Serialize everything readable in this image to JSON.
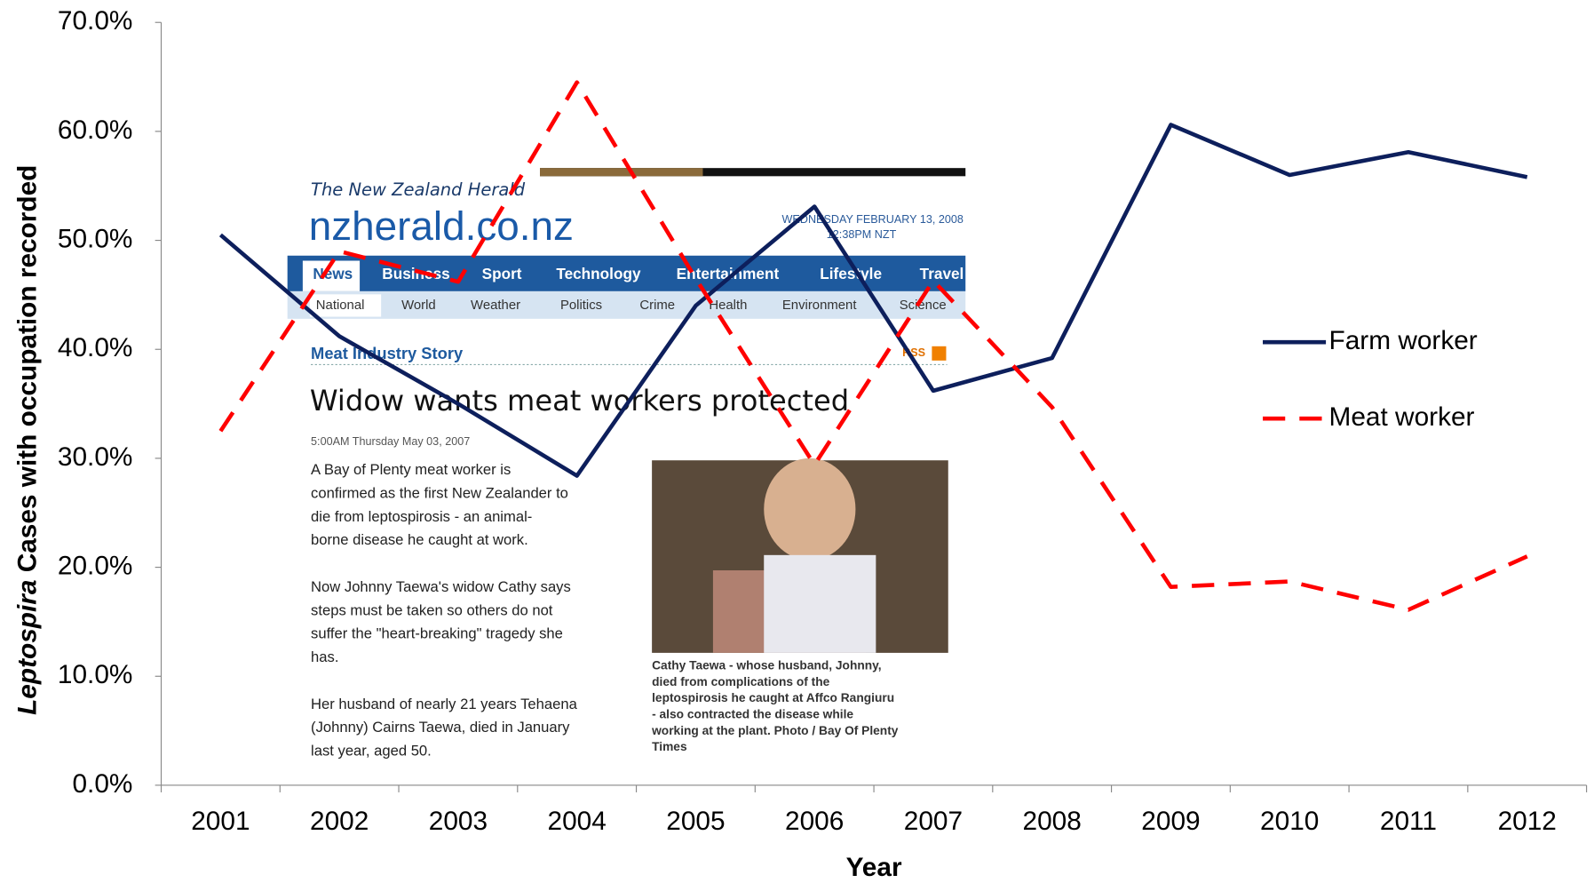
{
  "chart_data": {
    "type": "line",
    "xlabel": "Year",
    "ylabel_italic": "Leptospira",
    "ylabel": "Cases with occupation recorded",
    "categories": [
      "2001",
      "2002",
      "2003",
      "2004",
      "2005",
      "2006",
      "2007",
      "2008",
      "2009",
      "2010",
      "2011",
      "2012"
    ],
    "series": [
      {
        "name": "Farm worker",
        "color": "#0d1f5c",
        "dash": false,
        "values": [
          50.5,
          41.2,
          35.0,
          28.4,
          44.0,
          53.1,
          36.2,
          39.2,
          60.6,
          56.0,
          58.1,
          55.8
        ]
      },
      {
        "name": "Meat worker",
        "color": "#ff0000",
        "dash": true,
        "values": [
          32.5,
          49.0,
          46.2,
          64.5,
          46.5,
          29.4,
          46.3,
          34.7,
          18.2,
          18.7,
          16.1,
          21.0
        ]
      }
    ],
    "ylim": [
      0,
      70
    ],
    "yticks": [
      {
        "value": 0,
        "label": "0.0%"
      },
      {
        "value": 10,
        "label": "10.0%"
      },
      {
        "value": 20,
        "label": "20.0%"
      },
      {
        "value": 30,
        "label": "30.0%"
      },
      {
        "value": 40,
        "label": "40.0%"
      },
      {
        "value": 50,
        "label": "50.0%"
      },
      {
        "value": 60,
        "label": "60.0%"
      },
      {
        "value": 70,
        "label": "70.0%"
      }
    ],
    "grid": false,
    "legend": "right"
  },
  "screenshot": {
    "masthead": "The New Zealand Herald",
    "site": "nzherald.co.nz",
    "date": "WEDNESDAY FEBRUARY 13, 2008",
    "time": "12:38PM NZT",
    "nav": [
      "News",
      "Business",
      "Sport",
      "Technology",
      "Entertainment",
      "Lifestyle",
      "Travel"
    ],
    "subnav": [
      "National",
      "World",
      "Weather",
      "Politics",
      "Crime",
      "Health",
      "Environment",
      "Science"
    ],
    "section": "Meat Industry Story",
    "rss": "RSS",
    "headline": "Widow wants meat workers protected",
    "timestamp": "5:00AM Thursday May 03, 2007",
    "body": [
      "A Bay of Plenty meat worker is",
      "confirmed as the first New Zealander to",
      "die from leptospirosis - an animal-",
      "borne disease he caught at work.",
      "",
      "Now Johnny Taewa's widow Cathy says",
      "steps must be taken so others do not",
      "suffer the \"heart-breaking\" tragedy she",
      "has.",
      "",
      "Her husband of nearly 21 years Tehaena",
      "(Johnny) Cairns Taewa, died in January",
      "last year, aged 50."
    ],
    "caption": [
      "Cathy Taewa - whose husband, Johnny,",
      "died from complications of the",
      "leptospirosis he caught at Affco Rangiuru",
      "- also contracted the disease while",
      "working at the plant. Photo / Bay Of Plenty",
      "Times"
    ]
  }
}
